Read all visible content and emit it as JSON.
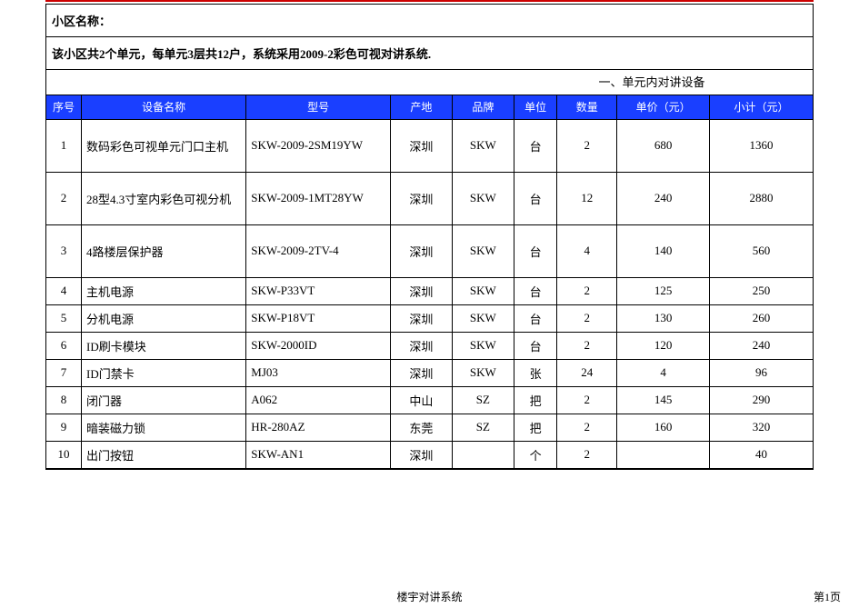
{
  "header": {
    "title_label": "小区名称：",
    "description": "该小区共2个单元，每单元3层共12户，系统采用2009-2彩色可视对讲系统."
  },
  "section_title": "一、单元内对讲设备",
  "columns": {
    "seq": "序号",
    "name": "设备名称",
    "model": "型号",
    "origin": "产地",
    "brand": "品牌",
    "unit": "单位",
    "qty": "数量",
    "price": "单价（元）",
    "subtotal": "小计（元）"
  },
  "rows": [
    {
      "seq": "1",
      "name": "数码彩色可视单元门口主机",
      "model": "SKW-2009-2SM19YW",
      "origin": "深圳",
      "brand": "SKW",
      "unit": "台",
      "qty": "2",
      "price": "680",
      "subtotal": "1360",
      "h": "tall-1"
    },
    {
      "seq": "2",
      "name": "28型4.3寸室内彩色可视分机",
      "model": "SKW-2009-1MT28YW",
      "origin": "深圳",
      "brand": "SKW",
      "unit": "台",
      "qty": "12",
      "price": "240",
      "subtotal": "2880",
      "h": "tall-2"
    },
    {
      "seq": "3",
      "name": "4路楼层保护器",
      "model": "SKW-2009-2TV-4",
      "origin": "深圳",
      "brand": "SKW",
      "unit": "台",
      "qty": "4",
      "price": "140",
      "subtotal": "560",
      "h": "tall-3"
    },
    {
      "seq": "4",
      "name": "主机电源",
      "model": "SKW-P33VT",
      "origin": "深圳",
      "brand": "SKW",
      "unit": "台",
      "qty": "2",
      "price": "125",
      "subtotal": "250",
      "h": "mid"
    },
    {
      "seq": "5",
      "name": "分机电源",
      "model": "SKW-P18VT",
      "origin": "深圳",
      "brand": "SKW",
      "unit": "台",
      "qty": "2",
      "price": "130",
      "subtotal": "260",
      "h": "short"
    },
    {
      "seq": "6",
      "name": "ID刷卡模块",
      "model": "SKW-2000ID",
      "origin": "深圳",
      "brand": "SKW",
      "unit": "台",
      "qty": "2",
      "price": "120",
      "subtotal": "240",
      "h": "short"
    },
    {
      "seq": "7",
      "name": "ID门禁卡",
      "model": "MJ03",
      "origin": "深圳",
      "brand": "SKW",
      "unit": "张",
      "qty": "24",
      "price": "4",
      "subtotal": "96",
      "h": "short"
    },
    {
      "seq": "8",
      "name": "闭门器",
      "model": "A062",
      "origin": "中山",
      "brand": "SZ",
      "unit": "把",
      "qty": "2",
      "price": "145",
      "subtotal": "290",
      "h": "short"
    },
    {
      "seq": "9",
      "name": "暗装磁力锁",
      "model": "HR-280AZ",
      "origin": "东莞",
      "brand": "SZ",
      "unit": "把",
      "qty": "2",
      "price": "160",
      "subtotal": "320",
      "h": "short"
    },
    {
      "seq": "10",
      "name": "出门按钮",
      "model": "SKW-AN1",
      "origin": "深圳",
      "brand": "",
      "unit": "个",
      "qty": "2",
      "price": "",
      "subtotal": "40",
      "h": "short"
    }
  ],
  "footer": {
    "center": "楼宇对讲系统",
    "right": "第1页"
  },
  "style": {
    "accent_border_color": "#cc0000",
    "header_bg": "#1a3fff",
    "header_fg": "#ffffff"
  }
}
